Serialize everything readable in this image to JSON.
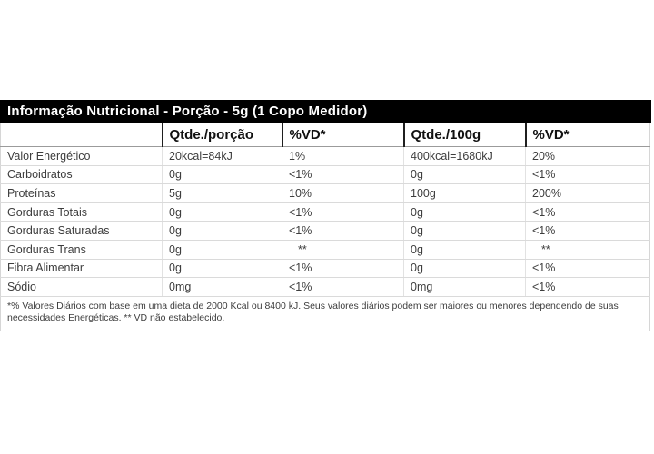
{
  "title_bar": {
    "title": "Informação Nutricional - Porção - 5g (1 Copo Medidor)",
    "bg_color": "#000000",
    "text_color": "#ffffff"
  },
  "table": {
    "column_headers": [
      "",
      "Qtde./porção",
      "%VD*",
      "Qtde./100g",
      "%VD*"
    ],
    "rows": [
      {
        "label": "Valor Energético",
        "qtde_porcao": "20kcal=84kJ",
        "vd_porcao": "1%",
        "qtde_100g": "400kcal=1680kJ",
        "vd_100g": "20%"
      },
      {
        "label": "Carboidratos",
        "qtde_porcao": "0g",
        "vd_porcao": "<1%",
        "qtde_100g": "0g",
        "vd_100g": "<1%"
      },
      {
        "label": "Proteínas",
        "qtde_porcao": "5g",
        "vd_porcao": "10%",
        "qtde_100g": "100g",
        "vd_100g": "200%"
      },
      {
        "label": "Gorduras Totais",
        "qtde_porcao": "0g",
        "vd_porcao": "<1%",
        "qtde_100g": "0g",
        "vd_100g": "<1%"
      },
      {
        "label": "Gorduras Saturadas",
        "qtde_porcao": "0g",
        "vd_porcao": "<1%",
        "qtde_100g": "0g",
        "vd_100g": "<1%"
      },
      {
        "label": "Gorduras Trans",
        "qtde_porcao": "0g",
        "vd_porcao": "**",
        "qtde_100g": "0g",
        "vd_100g": "**"
      },
      {
        "label": "Fibra Alimentar",
        "qtde_porcao": "0g",
        "vd_porcao": "<1%",
        "qtde_100g": "0g",
        "vd_100g": "<1%"
      },
      {
        "label": "Sódio",
        "qtde_porcao": "0mg",
        "vd_porcao": "<1%",
        "qtde_100g": "0mg",
        "vd_100g": "<1%"
      }
    ],
    "footnote": "*% Valores Diários com base em uma dieta de 2000 Kcal ou 8400 kJ. Seus valores diários podem ser maiores ou menores dependendo de suas necessidades Energéticas. ** VD não estabelecido."
  },
  "colors": {
    "title_bar_bg": "#000000",
    "title_bar_text": "#ffffff",
    "body_text": "#3d3d3d",
    "row_separator": "#dadada",
    "header_separator": "#9b9b9b",
    "outer_border": "#d6d6d6"
  }
}
